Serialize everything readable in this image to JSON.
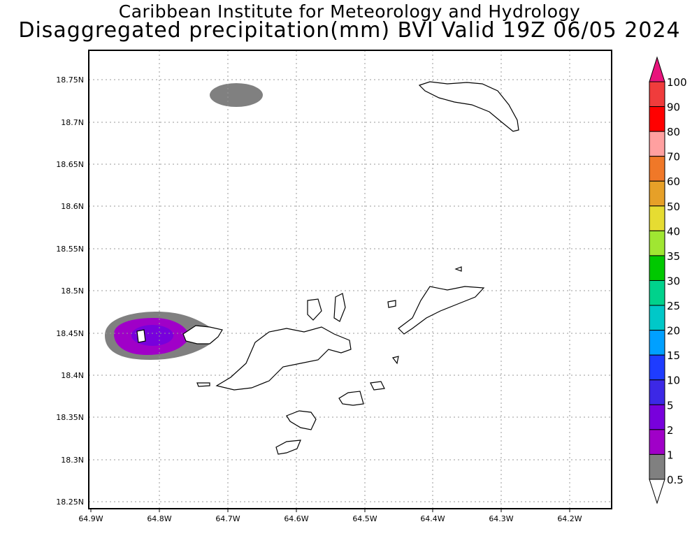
{
  "title": {
    "line1": "Caribbean Institute for Meteorology and Hydrology",
    "line2": "Disaggregated precipitation(mm) BVI Valid 19Z 06/05 2024"
  },
  "axes": {
    "lon_labels": [
      "64.9W",
      "64.8W",
      "64.7W",
      "64.6W",
      "64.5W",
      "64.4W",
      "64.3W",
      "64.2W"
    ],
    "lat_labels": [
      "18.75N",
      "18.7N",
      "18.65N",
      "18.6N",
      "18.55N",
      "18.5N",
      "18.45N",
      "18.4N",
      "18.35N",
      "18.3N",
      "18.25N"
    ]
  },
  "colorbar": {
    "labels": [
      "100",
      "90",
      "80",
      "70",
      "60",
      "50",
      "40",
      "35",
      "30",
      "25",
      "20",
      "15",
      "10",
      "5",
      "2",
      "1",
      "0.5"
    ],
    "colors": [
      "#e8147c",
      "#f03c3c",
      "#ff0000",
      "#ffa0a0",
      "#f07828",
      "#e6a028",
      "#e6dc32",
      "#a0e632",
      "#00c800",
      "#00d28c",
      "#00c8c8",
      "#00a0ff",
      "#1e3cff",
      "#3c28e6",
      "#7800dc",
      "#a000c8",
      "#808080"
    ]
  }
}
